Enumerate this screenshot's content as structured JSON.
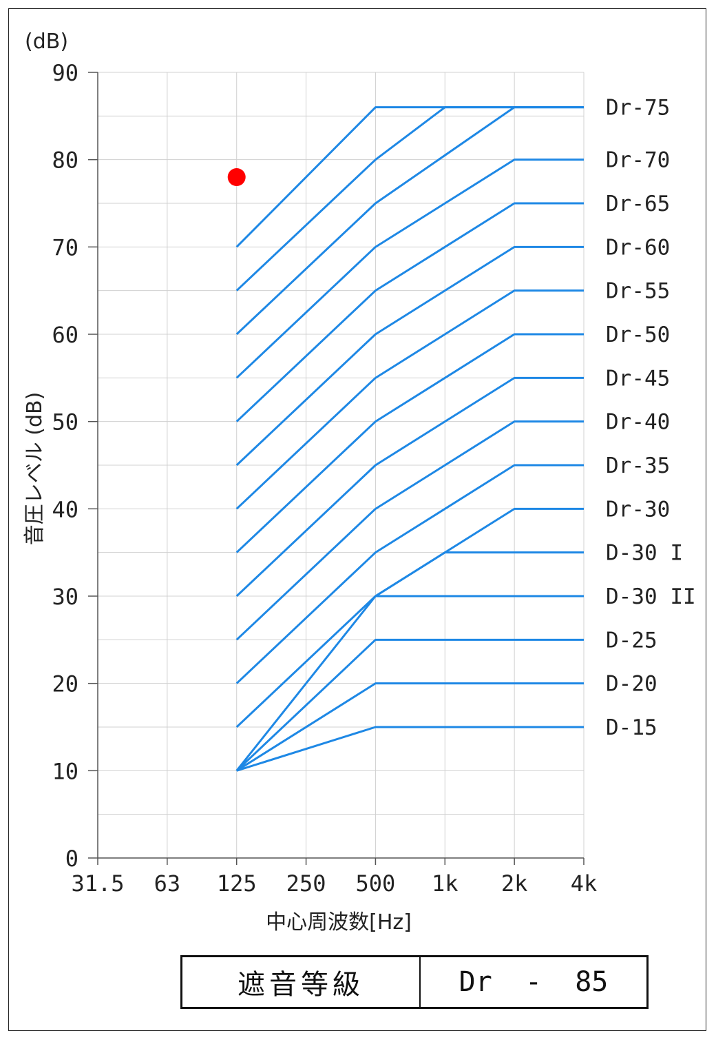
{
  "chart_data": {
    "type": "line",
    "y_unit_label": "(dB)",
    "ylabel": "音圧レベル (dB)",
    "xlabel": "中心周波数[Hz]",
    "x_categories": [
      "31.5",
      "63",
      "125",
      "250",
      "500",
      "1k",
      "2k",
      "4k"
    ],
    "y_ticks": [
      0,
      10,
      20,
      30,
      40,
      50,
      60,
      70,
      80,
      90
    ],
    "ylim": [
      0,
      90
    ],
    "grid": true,
    "line_color": "#1e88e5",
    "marker_color": "#ff0000",
    "series": [
      {
        "name": "Dr-75",
        "points": [
          [
            2,
            70
          ],
          [
            4,
            86
          ],
          [
            7,
            86
          ]
        ]
      },
      {
        "name": "Dr-70",
        "points": [
          [
            2,
            65
          ],
          [
            4,
            80
          ],
          [
            5,
            86
          ],
          [
            7,
            86
          ]
        ]
      },
      {
        "name": "Dr-65",
        "points": [
          [
            2,
            60
          ],
          [
            4,
            75
          ],
          [
            6,
            86
          ],
          [
            7,
            86
          ]
        ]
      },
      {
        "name": "Dr-60",
        "points": [
          [
            2,
            55
          ],
          [
            4,
            70
          ],
          [
            6,
            80
          ],
          [
            7,
            80
          ]
        ]
      },
      {
        "name": "Dr-55",
        "points": [
          [
            2,
            50
          ],
          [
            4,
            65
          ],
          [
            6,
            75
          ],
          [
            7,
            75
          ]
        ]
      },
      {
        "name": "Dr-50",
        "points": [
          [
            2,
            45
          ],
          [
            4,
            60
          ],
          [
            6,
            70
          ],
          [
            7,
            70
          ]
        ]
      },
      {
        "name": "Dr-45",
        "points": [
          [
            2,
            40
          ],
          [
            4,
            55
          ],
          [
            6,
            65
          ],
          [
            7,
            65
          ]
        ]
      },
      {
        "name": "Dr-40",
        "points": [
          [
            2,
            35
          ],
          [
            4,
            50
          ],
          [
            6,
            60
          ],
          [
            7,
            60
          ]
        ]
      },
      {
        "name": "Dr-35",
        "points": [
          [
            2,
            30
          ],
          [
            4,
            45
          ],
          [
            6,
            55
          ],
          [
            7,
            55
          ]
        ]
      },
      {
        "name": "Dr-30",
        "points": [
          [
            2,
            25
          ],
          [
            4,
            40
          ],
          [
            6,
            50
          ],
          [
            7,
            50
          ]
        ]
      },
      {
        "name": "D-30 I",
        "points": [
          [
            2,
            20
          ],
          [
            4,
            35
          ],
          [
            6,
            45
          ],
          [
            7,
            45
          ]
        ]
      },
      {
        "name": "D-30 II",
        "points": [
          [
            2,
            15
          ],
          [
            4,
            30
          ],
          [
            6,
            40
          ],
          [
            7,
            40
          ]
        ]
      },
      {
        "name": "D-25",
        "points": [
          [
            2,
            10
          ],
          [
            4,
            30
          ],
          [
            5,
            35
          ],
          [
            7,
            35
          ]
        ]
      },
      {
        "name": "D-20",
        "points": [
          [
            4,
            30
          ],
          [
            7,
            30
          ]
        ]
      },
      {
        "name": "D-15",
        "points": [
          [
            2,
            10
          ],
          [
            4,
            25
          ],
          [
            7,
            25
          ]
        ]
      },
      {
        "name": "",
        "points": [
          [
            2,
            10
          ],
          [
            4,
            20
          ],
          [
            7,
            20
          ]
        ]
      },
      {
        "name": "",
        "points": [
          [
            2,
            10
          ],
          [
            4,
            15
          ],
          [
            7,
            15
          ]
        ]
      }
    ],
    "right_labels": [
      {
        "text": "Dr-75",
        "y": 86
      },
      {
        "text": "Dr-70",
        "y": 80
      },
      {
        "text": "Dr-65",
        "y": 75
      },
      {
        "text": "Dr-60",
        "y": 70
      },
      {
        "text": "Dr-55",
        "y": 65
      },
      {
        "text": "Dr-50",
        "y": 60
      },
      {
        "text": "Dr-45",
        "y": 55
      },
      {
        "text": "Dr-40",
        "y": 50
      },
      {
        "text": "Dr-35",
        "y": 45
      },
      {
        "text": "Dr-30",
        "y": 40
      },
      {
        "text": "D-30 I",
        "y": 35
      },
      {
        "text": "D-30 II",
        "y": 30
      },
      {
        "text": "D-25",
        "y": 25
      },
      {
        "text": "D-20",
        "y": 20
      },
      {
        "text": "D-15",
        "y": 15
      }
    ],
    "measured_point": {
      "x": "125",
      "y": 78
    }
  },
  "rating_table": {
    "label": "遮音等級",
    "value": "Dr  -  85"
  }
}
